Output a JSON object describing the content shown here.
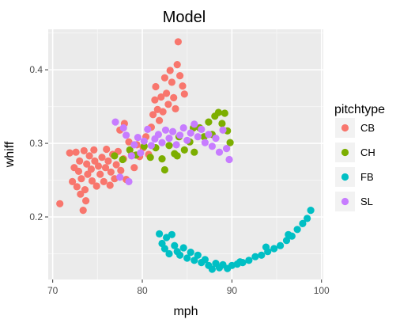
{
  "chart_data": {
    "type": "scatter",
    "title": "Model",
    "xlabel": "mph",
    "ylabel": "whiff",
    "xlim": [
      69.5,
      100.2
    ],
    "ylim": [
      0.115,
      0.455
    ],
    "x_ticks": [
      70,
      80,
      90,
      100
    ],
    "y_ticks": [
      0.2,
      0.3,
      0.4
    ],
    "x_tick_labels": [
      "70",
      "80",
      "90",
      "100"
    ],
    "y_tick_labels": [
      "0.2",
      "0.3",
      "0.4"
    ],
    "grid": true,
    "legend": {
      "title": "pitchtype",
      "placement": "right",
      "entries": [
        "CB",
        "CH",
        "FB",
        "SL"
      ]
    },
    "series": [
      {
        "name": "CB",
        "color": "#F8766D",
        "points": [
          [
            70.8,
            0.218
          ],
          [
            71.9,
            0.287
          ],
          [
            72.2,
            0.248
          ],
          [
            72.4,
            0.267
          ],
          [
            72.6,
            0.288
          ],
          [
            72.7,
            0.241
          ],
          [
            72.9,
            0.262
          ],
          [
            73.0,
            0.276
          ],
          [
            73.1,
            0.231
          ],
          [
            73.2,
            0.252
          ],
          [
            73.4,
            0.209
          ],
          [
            73.5,
            0.29
          ],
          [
            73.6,
            0.237
          ],
          [
            73.7,
            0.222
          ],
          [
            73.8,
            0.272
          ],
          [
            73.9,
            0.258
          ],
          [
            74.1,
            0.283
          ],
          [
            74.3,
            0.265
          ],
          [
            74.4,
            0.249
          ],
          [
            74.6,
            0.291
          ],
          [
            74.7,
            0.276
          ],
          [
            74.9,
            0.242
          ],
          [
            75.1,
            0.269
          ],
          [
            75.3,
            0.258
          ],
          [
            75.5,
            0.281
          ],
          [
            75.7,
            0.248
          ],
          [
            75.9,
            0.267
          ],
          [
            76.0,
            0.292
          ],
          [
            76.2,
            0.276
          ],
          [
            76.4,
            0.243
          ],
          [
            76.5,
            0.261
          ],
          [
            76.7,
            0.285
          ],
          [
            76.9,
            0.252
          ],
          [
            77.1,
            0.271
          ],
          [
            77.3,
            0.289
          ],
          [
            77.6,
            0.263
          ],
          [
            77.9,
            0.279
          ],
          [
            78.2,
            0.251
          ],
          [
            78.5,
            0.302
          ],
          [
            78.8,
            0.284
          ],
          [
            79.1,
            0.267
          ],
          [
            79.4,
            0.298
          ],
          [
            79.7,
            0.282
          ],
          [
            80.1,
            0.294
          ],
          [
            80.4,
            0.309
          ],
          [
            80.7,
            0.285
          ],
          [
            81.0,
            0.322
          ],
          [
            81.2,
            0.339
          ],
          [
            81.4,
            0.359
          ],
          [
            81.5,
            0.377
          ],
          [
            81.7,
            0.346
          ],
          [
            81.9,
            0.331
          ],
          [
            82.1,
            0.363
          ],
          [
            82.3,
            0.343
          ],
          [
            82.5,
            0.389
          ],
          [
            82.7,
            0.368
          ],
          [
            82.9,
            0.353
          ],
          [
            83.1,
            0.399
          ],
          [
            83.3,
            0.383
          ],
          [
            83.5,
            0.362
          ],
          [
            83.7,
            0.347
          ],
          [
            83.9,
            0.407
          ],
          [
            84.0,
            0.438
          ],
          [
            84.2,
            0.392
          ],
          [
            84.5,
            0.378
          ],
          [
            84.7,
            0.367
          ],
          [
            77.5,
            0.318
          ],
          [
            78.0,
            0.327
          ]
        ]
      },
      {
        "name": "CH",
        "color": "#7CAE00",
        "points": [
          [
            76.9,
            0.283
          ],
          [
            77.8,
            0.278
          ],
          [
            78.6,
            0.291
          ],
          [
            79.3,
            0.284
          ],
          [
            80.2,
            0.296
          ],
          [
            80.9,
            0.281
          ],
          [
            81.5,
            0.294
          ],
          [
            82.2,
            0.279
          ],
          [
            82.5,
            0.264
          ],
          [
            83.0,
            0.297
          ],
          [
            83.6,
            0.286
          ],
          [
            84.1,
            0.309
          ],
          [
            84.7,
            0.291
          ],
          [
            85.3,
            0.302
          ],
          [
            85.8,
            0.288
          ],
          [
            86.4,
            0.321
          ],
          [
            86.9,
            0.309
          ],
          [
            87.4,
            0.329
          ],
          [
            87.8,
            0.312
          ],
          [
            88.1,
            0.337
          ],
          [
            88.5,
            0.342
          ],
          [
            88.9,
            0.327
          ],
          [
            89.2,
            0.341
          ],
          [
            89.5,
            0.317
          ],
          [
            89.8,
            0.301
          ],
          [
            85.7,
            0.321
          ],
          [
            83.9,
            0.283
          ]
        ]
      },
      {
        "name": "FB",
        "color": "#00BFC4",
        "points": [
          [
            81.9,
            0.177
          ],
          [
            82.2,
            0.164
          ],
          [
            82.5,
            0.157
          ],
          [
            82.7,
            0.172
          ],
          [
            83.0,
            0.15
          ],
          [
            83.3,
            0.176
          ],
          [
            83.6,
            0.161
          ],
          [
            83.9,
            0.153
          ],
          [
            84.2,
            0.148
          ],
          [
            84.6,
            0.158
          ],
          [
            85.0,
            0.144
          ],
          [
            85.4,
            0.152
          ],
          [
            85.8,
            0.141
          ],
          [
            86.2,
            0.148
          ],
          [
            86.6,
            0.138
          ],
          [
            87.0,
            0.142
          ],
          [
            87.4,
            0.134
          ],
          [
            87.8,
            0.129
          ],
          [
            88.2,
            0.137
          ],
          [
            88.6,
            0.131
          ],
          [
            89.0,
            0.135
          ],
          [
            89.5,
            0.13
          ],
          [
            90.0,
            0.134
          ],
          [
            90.6,
            0.136
          ],
          [
            91.2,
            0.138
          ],
          [
            91.9,
            0.141
          ],
          [
            92.6,
            0.146
          ],
          [
            93.3,
            0.148
          ],
          [
            94.0,
            0.153
          ],
          [
            94.7,
            0.157
          ],
          [
            95.4,
            0.161
          ],
          [
            96.1,
            0.168
          ],
          [
            96.7,
            0.174
          ],
          [
            97.3,
            0.183
          ],
          [
            97.9,
            0.191
          ],
          [
            98.4,
            0.198
          ],
          [
            98.8,
            0.209
          ],
          [
            96.3,
            0.176
          ],
          [
            93.8,
            0.159
          ],
          [
            90.9,
            0.139
          ]
        ]
      },
      {
        "name": "SL",
        "color": "#C77CFF",
        "points": [
          [
            77.0,
            0.329
          ],
          [
            77.5,
            0.254
          ],
          [
            77.9,
            0.321
          ],
          [
            78.2,
            0.311
          ],
          [
            78.5,
            0.248
          ],
          [
            78.8,
            0.283
          ],
          [
            79.1,
            0.298
          ],
          [
            79.5,
            0.308
          ],
          [
            79.8,
            0.287
          ],
          [
            80.2,
            0.303
          ],
          [
            80.6,
            0.319
          ],
          [
            81.0,
            0.297
          ],
          [
            81.4,
            0.306
          ],
          [
            81.8,
            0.312
          ],
          [
            82.2,
            0.301
          ],
          [
            82.6,
            0.318
          ],
          [
            83.0,
            0.307
          ],
          [
            83.4,
            0.316
          ],
          [
            83.8,
            0.298
          ],
          [
            84.2,
            0.311
          ],
          [
            84.6,
            0.321
          ],
          [
            85.0,
            0.304
          ],
          [
            85.4,
            0.314
          ],
          [
            85.8,
            0.326
          ],
          [
            86.2,
            0.309
          ],
          [
            86.6,
            0.319
          ],
          [
            87.0,
            0.301
          ],
          [
            87.4,
            0.312
          ],
          [
            87.8,
            0.296
          ],
          [
            88.2,
            0.307
          ],
          [
            88.6,
            0.288
          ],
          [
            89.0,
            0.318
          ],
          [
            89.4,
            0.293
          ],
          [
            89.7,
            0.278
          ]
        ]
      }
    ]
  }
}
